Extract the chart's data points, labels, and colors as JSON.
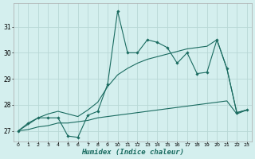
{
  "xlabel": "Humidex (Indice chaleur)",
  "background_color": "#d4efee",
  "grid_color": "#b8d8d6",
  "line_color": "#1a6b60",
  "x_data": [
    0,
    1,
    2,
    3,
    4,
    5,
    6,
    7,
    8,
    9,
    10,
    11,
    12,
    13,
    14,
    15,
    16,
    17,
    18,
    19,
    20,
    21,
    22,
    23
  ],
  "y_main": [
    27.0,
    27.3,
    27.5,
    27.5,
    27.5,
    26.8,
    26.75,
    27.6,
    27.75,
    28.8,
    31.6,
    30.0,
    30.0,
    30.5,
    30.4,
    30.2,
    29.6,
    30.0,
    29.2,
    29.25,
    30.5,
    29.4,
    27.7,
    27.8
  ],
  "y_trend1": [
    27.0,
    27.25,
    27.5,
    27.65,
    27.75,
    27.65,
    27.55,
    27.8,
    28.1,
    28.7,
    29.15,
    29.4,
    29.6,
    29.75,
    29.85,
    29.95,
    30.05,
    30.15,
    30.2,
    30.25,
    30.5,
    29.4,
    27.7,
    27.8
  ],
  "y_trend2": [
    27.0,
    27.05,
    27.15,
    27.2,
    27.3,
    27.3,
    27.35,
    27.4,
    27.5,
    27.55,
    27.6,
    27.65,
    27.7,
    27.75,
    27.8,
    27.85,
    27.9,
    27.95,
    28.0,
    28.05,
    28.1,
    28.15,
    27.65,
    27.8
  ],
  "ylim": [
    26.6,
    31.9
  ],
  "yticks": [
    27,
    28,
    29,
    30,
    31
  ],
  "xlim": [
    -0.5,
    23.5
  ],
  "xticks": [
    0,
    1,
    2,
    3,
    4,
    5,
    6,
    7,
    8,
    9,
    10,
    11,
    12,
    13,
    14,
    15,
    16,
    17,
    18,
    19,
    20,
    21,
    22,
    23
  ]
}
